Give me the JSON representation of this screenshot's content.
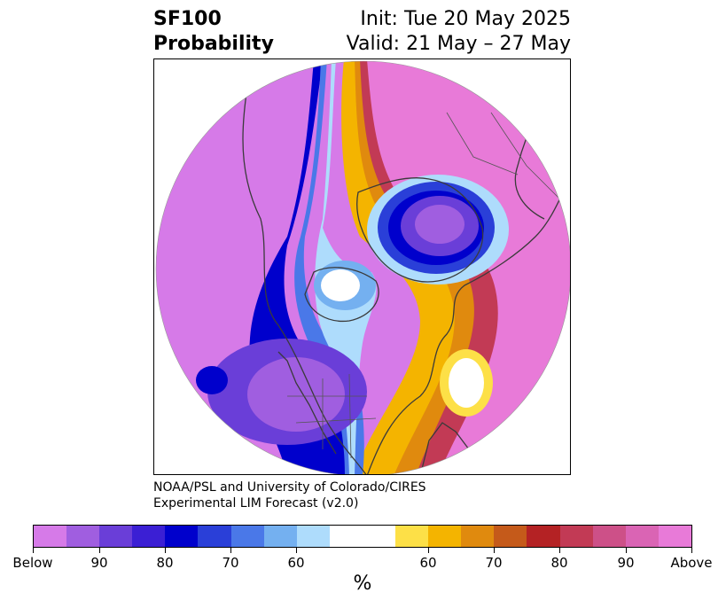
{
  "header": {
    "variable": "SF100",
    "quantity": "Probability",
    "init": "Init: Tue 20 May 2025",
    "valid": "Valid: 21 May – 27 May"
  },
  "credit": {
    "line1": "NOAA/PSL and University of Colorado/CIRES",
    "line2": "Experimental LIM Forecast (v2.0)"
  },
  "colorbar": {
    "colors": [
      "#d67ae8",
      "#a05ee0",
      "#6a3ed8",
      "#3b1fd4",
      "#0000cc",
      "#2a3fd8",
      "#4a78e8",
      "#74b0f0",
      "#aedcfc",
      "#ffffff",
      "#ffffff",
      "#fde047",
      "#f4b400",
      "#e08a0e",
      "#c55a1a",
      "#b42224",
      "#c23a55",
      "#cd5088",
      "#da64b4",
      "#e87ad8"
    ],
    "tick_labels": [
      "Below",
      "90",
      "80",
      "70",
      "60",
      "60",
      "70",
      "80",
      "90",
      "Above"
    ],
    "unit": "%"
  },
  "map": {
    "projection": "north-polar-stereographic",
    "regions": [
      {
        "name": "pacific-below-anomaly",
        "category": "Below 90"
      },
      {
        "name": "siberia-above-anomaly",
        "category": "Above 90"
      },
      {
        "name": "arctic-low-center",
        "category": "Below 80"
      },
      {
        "name": "eastern-us-above-anomaly",
        "category": "Above 60"
      }
    ]
  }
}
